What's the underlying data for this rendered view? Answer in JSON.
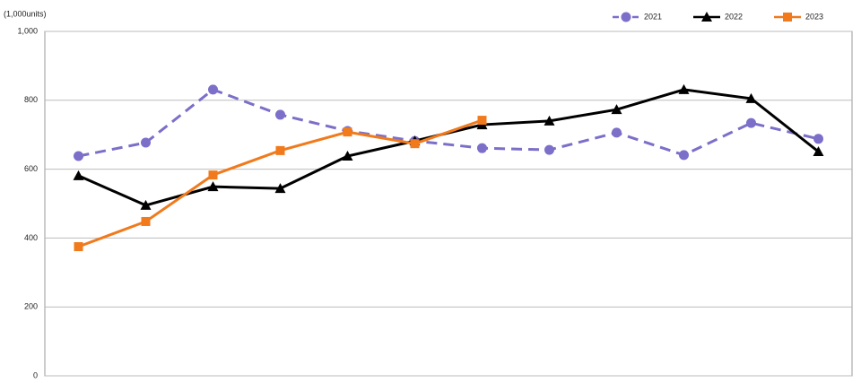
{
  "chart_data": {
    "type": "line",
    "y_label": "(1,000units)",
    "categories": [
      null,
      null,
      null,
      null,
      null,
      null,
      null,
      null,
      null,
      null,
      null,
      null
    ],
    "ylim": [
      0,
      1000
    ],
    "yticks": [
      0,
      200,
      400,
      600,
      800,
      {
        "value": 1000,
        "label": "1,000"
      }
    ],
    "grid": true,
    "legend": "top-right",
    "series": [
      {
        "name": "2021",
        "color": "#7b6fc9",
        "dash": true,
        "marker": "circle",
        "values": [
          638,
          677,
          831,
          758,
          711,
          682,
          661,
          656,
          706,
          641,
          734,
          688
        ]
      },
      {
        "name": "2022",
        "color": "#000000",
        "dash": false,
        "marker": "triangle",
        "values": [
          581,
          495,
          549,
          544,
          638,
          682,
          729,
          740,
          773,
          831,
          805,
          651
        ]
      },
      {
        "name": "2023",
        "color": "#f07a1c",
        "dash": false,
        "marker": "square",
        "values": [
          375,
          448,
          583,
          654,
          708,
          674,
          742,
          null,
          null,
          null,
          null,
          null
        ]
      }
    ]
  }
}
